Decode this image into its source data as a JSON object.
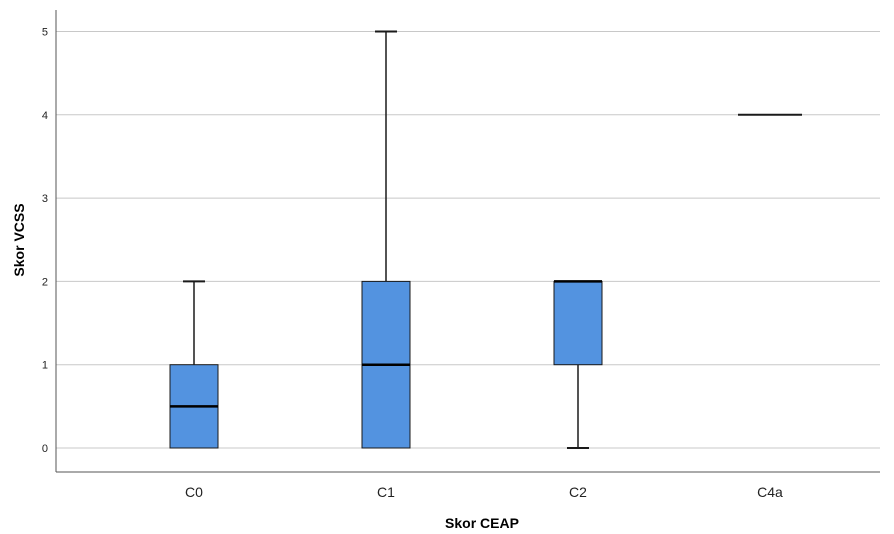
{
  "chart_data": {
    "type": "boxplot",
    "title": "",
    "xlabel": "Skor CEAP",
    "ylabel": "Skor VCSS",
    "ylim": [
      -0.25,
      5.25
    ],
    "yticks": [
      0,
      1,
      2,
      3,
      4,
      5
    ],
    "grid": true,
    "legend": "none",
    "colors": {
      "box_fill": "#5393e0",
      "box_stroke": "#1a1a1a",
      "grid": "#c8c8c8",
      "axis": "#555555"
    },
    "categories": [
      "C0",
      "C1",
      "C2",
      "C4a"
    ],
    "boxes": [
      {
        "category": "C0",
        "min": 0,
        "q1": 0,
        "median": 0.5,
        "q3": 1,
        "max": 2
      },
      {
        "category": "C1",
        "min": 0,
        "q1": 0,
        "median": 1,
        "q3": 2,
        "max": 5
      },
      {
        "category": "C2",
        "min": 0,
        "q1": 1,
        "median": 2,
        "q3": 2,
        "max": 2
      },
      {
        "category": "C4a",
        "min": 4,
        "q1": 4,
        "median": 4,
        "q3": 4,
        "max": 4
      }
    ]
  }
}
